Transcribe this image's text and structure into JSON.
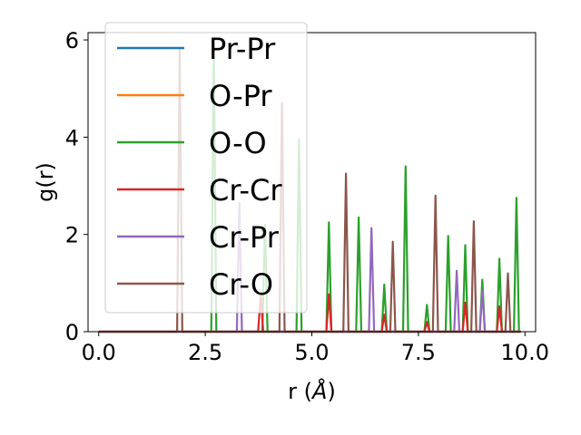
{
  "chart_data": {
    "type": "line",
    "xlabel_main": "r (",
    "xlabel_unit": "Å",
    "xlabel_close": ")",
    "ylabel": "g(r)",
    "xlim": [
      -0.25,
      10.25
    ],
    "ylim": [
      0,
      6.15
    ],
    "xticks": [
      0.0,
      2.5,
      5.0,
      7.5,
      10.0
    ],
    "xtick_labels": [
      "0.0",
      "2.5",
      "5.0",
      "7.5",
      "10.0"
    ],
    "yticks": [
      0,
      2,
      4,
      6
    ],
    "ytick_labels": [
      "0",
      "2",
      "4",
      "6"
    ],
    "grid": false,
    "legend_position": "upper-left",
    "series": [
      {
        "name": "Pr-Pr",
        "color": "#1f77b4",
        "peaks": []
      },
      {
        "name": "O-Pr",
        "color": "#ff7f0e",
        "peaks": []
      },
      {
        "name": "O-O",
        "color": "#2ca02c",
        "peaks": [
          [
            2.7,
            5.8
          ],
          [
            3.9,
            2.2
          ],
          [
            4.7,
            3.95
          ],
          [
            5.4,
            2.25
          ],
          [
            6.1,
            2.35
          ],
          [
            6.7,
            0.97
          ],
          [
            7.2,
            3.4
          ],
          [
            7.7,
            0.55
          ],
          [
            8.2,
            1.97
          ],
          [
            8.6,
            1.78
          ],
          [
            9.0,
            1.07
          ],
          [
            9.4,
            1.5
          ],
          [
            9.8,
            2.75
          ]
        ]
      },
      {
        "name": "Cr-Cr",
        "color": "#d62728",
        "peaks": [
          [
            3.8,
            0.75
          ],
          [
            5.4,
            0.77
          ],
          [
            6.7,
            0.35
          ],
          [
            7.7,
            0.2
          ],
          [
            8.6,
            0.6
          ],
          [
            9.4,
            0.52
          ]
        ]
      },
      {
        "name": "Cr-Pr",
        "color": "#9467bd",
        "peaks": [
          [
            3.3,
            2.65
          ],
          [
            6.4,
            2.13
          ],
          [
            8.4,
            1.25
          ],
          [
            9.0,
            0.85
          ]
        ]
      },
      {
        "name": "Cr-O",
        "color": "#8c564b",
        "peaks": [
          [
            1.9,
            5.8
          ],
          [
            4.3,
            4.7
          ],
          [
            5.8,
            3.25
          ],
          [
            6.9,
            1.85
          ],
          [
            7.9,
            2.8
          ],
          [
            8.8,
            2.27
          ],
          [
            9.6,
            1.2
          ]
        ]
      }
    ]
  }
}
